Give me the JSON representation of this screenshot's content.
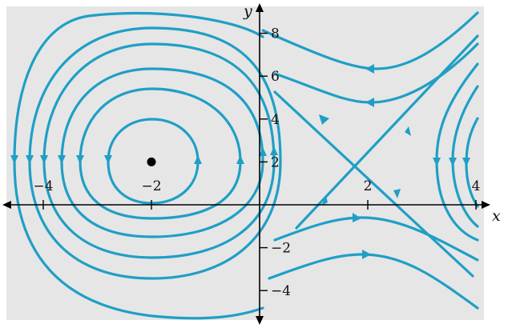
{
  "figure": {
    "background_color": "#e6e6e6",
    "curve_color": "#1f9fc6",
    "axis_color": "#000000",
    "point_color": "#000000"
  },
  "axes": {
    "x_label": "x",
    "y_label": "y",
    "x_ticks": [
      {
        "value": -4,
        "label": "−4"
      },
      {
        "value": -2,
        "label": "−2"
      },
      {
        "value": 2,
        "label": "2"
      },
      {
        "value": 4,
        "label": "4"
      }
    ],
    "y_ticks": [
      {
        "value": 8,
        "label": "8"
      },
      {
        "value": 6,
        "label": "6"
      },
      {
        "value": 4,
        "label": "4"
      },
      {
        "value": 2,
        "label": "2"
      },
      {
        "value": -2,
        "label": "−2"
      },
      {
        "value": -4,
        "label": "−4"
      }
    ]
  },
  "equilibria": {
    "center": {
      "x": -2,
      "y": 2,
      "type": "center"
    },
    "saddle": {
      "x": 2,
      "y": 2,
      "type": "saddle"
    }
  },
  "orbits": {
    "closed_orbit_count": 5,
    "separatrices": "two straight lines through the saddle (2, 2)"
  }
}
